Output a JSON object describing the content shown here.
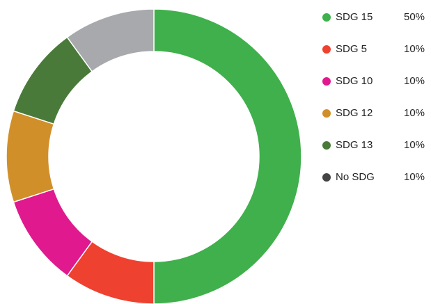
{
  "chart_data": {
    "type": "donut",
    "categories": [
      "SDG 15",
      "SDG 5",
      "SDG 10",
      "SDG 12",
      "SDG 13",
      "No SDG"
    ],
    "values": [
      50,
      10,
      10,
      10,
      10,
      10
    ],
    "value_labels": [
      "50%",
      "10%",
      "10%",
      "10%",
      "10%",
      "10%"
    ],
    "colors": [
      "#3fb04b",
      "#ef4130",
      "#e0198f",
      "#d18f2a",
      "#4a7a3a",
      "#a7a9ac"
    ],
    "legend_colors": [
      "#3fb04b",
      "#ef4130",
      "#e0198f",
      "#d18f2a",
      "#4a7a3a",
      "#444444"
    ],
    "legend": "right"
  }
}
